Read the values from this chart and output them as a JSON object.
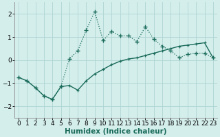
{
  "x_upper": [
    0,
    1,
    2,
    3,
    4,
    5,
    6,
    7,
    8,
    9,
    10,
    11,
    12,
    13,
    14,
    15,
    16,
    17,
    18,
    19,
    20,
    21,
    22,
    23
  ],
  "y_upper": [
    -0.75,
    -0.9,
    -1.2,
    -1.55,
    -1.7,
    -1.15,
    0.05,
    0.4,
    1.3,
    2.1,
    0.85,
    1.25,
    1.05,
    1.05,
    0.8,
    1.45,
    0.9,
    0.6,
    0.4,
    0.1,
    0.25,
    0.3,
    0.3,
    0.1
  ],
  "x_lower": [
    0,
    1,
    2,
    3,
    4,
    5,
    6,
    7,
    8,
    9,
    10,
    11,
    12,
    13,
    14,
    15,
    16,
    17,
    18,
    19,
    20,
    21,
    22,
    23
  ],
  "y_lower": [
    -0.75,
    -0.9,
    -1.2,
    -1.55,
    -1.7,
    -1.15,
    -1.1,
    -1.3,
    -0.9,
    -0.6,
    -0.4,
    -0.2,
    -0.05,
    0.05,
    0.1,
    0.2,
    0.3,
    0.4,
    0.5,
    0.6,
    0.65,
    0.7,
    0.75,
    0.1
  ],
  "line_color": "#1a6b5a",
  "marker": "+",
  "marker_size": 4,
  "marker_size_lower": 3,
  "bg_color": "#d4eeec",
  "grid_color": "#aed4d2",
  "xlabel": "Humidex (Indice chaleur)",
  "ylim": [
    -2.5,
    2.5
  ],
  "xlim": [
    -0.5,
    23.5
  ],
  "yticks": [
    -2,
    -1,
    0,
    1,
    2
  ],
  "xticks": [
    0,
    1,
    2,
    3,
    4,
    5,
    6,
    7,
    8,
    9,
    10,
    11,
    12,
    13,
    14,
    15,
    16,
    17,
    18,
    19,
    20,
    21,
    22,
    23
  ],
  "xlabel_fontsize": 7.5,
  "tick_fontsize": 6.5,
  "linewidth_upper": 0.9,
  "linewidth_lower": 1.0
}
